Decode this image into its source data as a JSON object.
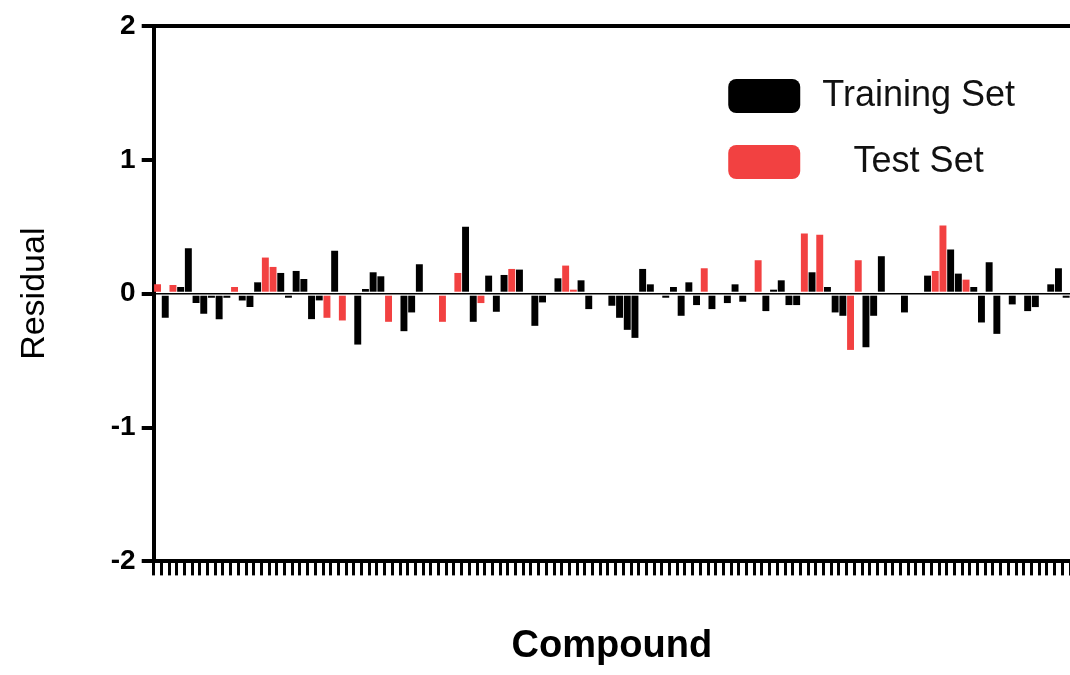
{
  "chart_data": {
    "type": "bar",
    "xlabel": "Compound",
    "ylabel": "Residual",
    "categories": [
      null,
      null,
      null,
      null,
      null,
      null,
      null,
      null,
      null,
      null,
      null,
      null,
      null,
      null,
      null,
      null,
      null,
      null,
      null,
      null,
      null,
      null,
      null,
      null,
      null,
      null,
      null,
      null,
      null,
      null,
      null,
      null,
      null,
      null,
      null,
      null,
      null,
      null,
      null,
      null,
      null,
      null,
      null,
      null,
      null,
      null,
      null,
      null,
      null,
      null,
      null,
      null,
      null,
      null,
      null,
      null,
      null,
      null,
      null,
      null,
      null,
      null,
      null,
      null,
      null,
      null,
      null,
      null,
      null,
      null,
      null,
      null,
      null,
      null,
      null,
      null,
      null,
      null,
      null,
      null,
      null,
      null,
      null,
      null,
      null,
      null,
      null,
      null,
      null,
      null,
      null,
      null,
      null,
      null,
      null,
      null,
      null,
      null,
      null,
      null,
      null,
      null,
      null,
      null,
      null,
      null,
      null,
      null,
      null,
      null,
      null,
      null,
      null,
      null,
      null,
      null,
      null,
      null,
      null
    ],
    "series": [
      {
        "name": "Training Set",
        "color": "#000000",
        "values": [
          null,
          -0.18,
          null,
          0.05,
          0.34,
          -0.07,
          -0.15,
          -0.03,
          -0.19,
          -0.03,
          null,
          -0.05,
          -0.1,
          0.085,
          null,
          null,
          0.155,
          -0.03,
          0.17,
          0.11,
          -0.19,
          -0.05,
          null,
          0.32,
          null,
          null,
          -0.38,
          0.035,
          0.16,
          0.13,
          null,
          null,
          -0.28,
          -0.14,
          0.22,
          null,
          null,
          null,
          null,
          null,
          0.5,
          -0.21,
          null,
          0.135,
          -0.135,
          0.14,
          null,
          0.18,
          null,
          -0.24,
          -0.065,
          null,
          0.115,
          null,
          null,
          0.1,
          -0.115,
          null,
          null,
          -0.09,
          -0.18,
          -0.27,
          -0.33,
          0.185,
          0.07,
          null,
          -0.03,
          0.05,
          -0.165,
          0.085,
          -0.085,
          null,
          -0.115,
          null,
          -0.07,
          0.07,
          -0.06,
          null,
          null,
          -0.13,
          0.03,
          0.1,
          -0.085,
          -0.085,
          null,
          0.16,
          null,
          0.05,
          -0.14,
          -0.165,
          null,
          null,
          -0.4,
          -0.165,
          0.28,
          null,
          null,
          -0.14,
          null,
          null,
          0.135,
          null,
          null,
          0.33,
          0.15,
          null,
          0.05,
          -0.215,
          0.235,
          -0.3,
          null,
          -0.08,
          null,
          -0.13,
          -0.1,
          null,
          0.07,
          0.19,
          -0.03
        ]
      },
      {
        "name": "Test Set",
        "color": "#f24141",
        "values": [
          0.07,
          null,
          0.065,
          null,
          null,
          null,
          null,
          null,
          null,
          null,
          0.05,
          null,
          null,
          null,
          0.27,
          0.2,
          null,
          null,
          null,
          null,
          null,
          null,
          -0.18,
          null,
          -0.2,
          null,
          null,
          null,
          null,
          null,
          -0.21,
          null,
          null,
          null,
          null,
          null,
          null,
          -0.21,
          null,
          0.155,
          null,
          null,
          -0.07,
          null,
          null,
          null,
          0.185,
          null,
          null,
          null,
          null,
          null,
          null,
          0.21,
          0.03,
          null,
          null,
          null,
          null,
          null,
          null,
          null,
          null,
          null,
          null,
          null,
          null,
          null,
          null,
          null,
          null,
          0.19,
          null,
          null,
          null,
          null,
          null,
          null,
          0.25,
          null,
          null,
          null,
          null,
          null,
          0.45,
          null,
          0.44,
          null,
          null,
          null,
          -0.42,
          0.25,
          null,
          null,
          null,
          null,
          null,
          null,
          null,
          null,
          null,
          0.17,
          0.51,
          null,
          null,
          0.105,
          null,
          null,
          null,
          null,
          null,
          null,
          null,
          null,
          null,
          null,
          null,
          null,
          null
        ]
      }
    ],
    "ylim": [
      -2,
      2
    ],
    "yticks": [
      -2,
      -1,
      0,
      1,
      2
    ],
    "legend": "top right"
  }
}
